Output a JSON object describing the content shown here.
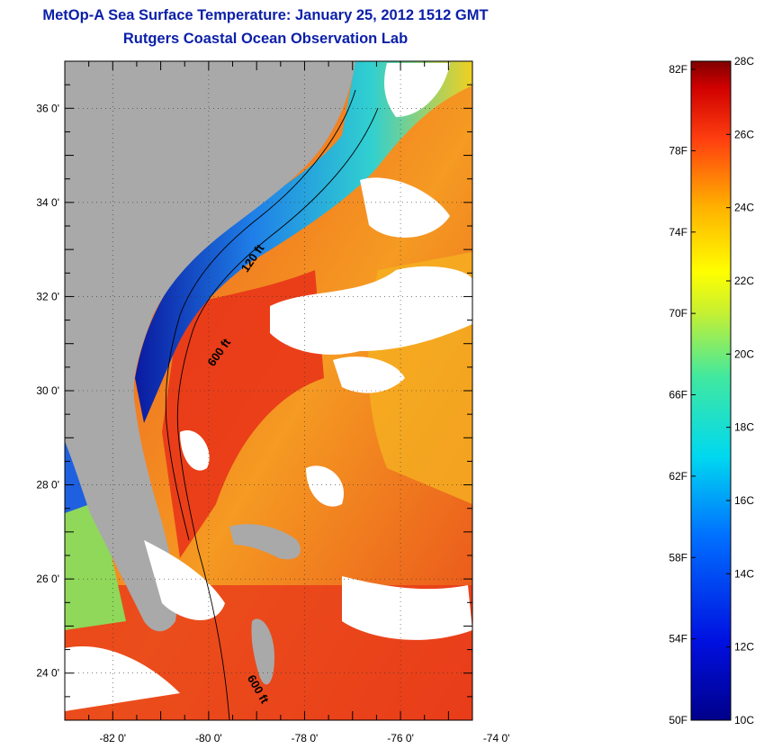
{
  "title_line1": "MetOp-A Sea Surface Temperature:  January 25, 2012 1512 GMT",
  "title_line2": "Rutgers Coastal Ocean Observation Lab",
  "lat_ticks": [
    {
      "label": "36 0'",
      "value": 36
    },
    {
      "label": "34 0'",
      "value": 34
    },
    {
      "label": "32 0'",
      "value": 32
    },
    {
      "label": "30 0'",
      "value": 30
    },
    {
      "label": "28 0'",
      "value": 28
    },
    {
      "label": "26 0'",
      "value": 26
    },
    {
      "label": "24 0'",
      "value": 24
    }
  ],
  "lon_ticks": [
    {
      "label": "-82 0'",
      "value": -82
    },
    {
      "label": "-80 0'",
      "value": -80
    },
    {
      "label": "-78 0'",
      "value": -78
    },
    {
      "label": "-76 0'",
      "value": -76
    },
    {
      "label": "-74 0'",
      "value": -74
    }
  ],
  "map_extent": {
    "lon_min": -83,
    "lon_max": -74.5,
    "lat_min": 23,
    "lat_max": 37
  },
  "contour_labels": [
    {
      "text": "120 ft",
      "lon": -79.2,
      "lat": 32.5
    },
    {
      "text": "600 ft",
      "lon": -79.9,
      "lat": 30.5
    },
    {
      "text": "600 ft",
      "lon": -79.2,
      "lat": 23.9
    }
  ],
  "colorbar": {
    "fahrenheit": [
      "82F",
      "78F",
      "74F",
      "70F",
      "66F",
      "62F",
      "58F",
      "54F",
      "50F"
    ],
    "celsius": [
      "28C",
      "26C",
      "24C",
      "22C",
      "20C",
      "18C",
      "16C",
      "14C",
      "12C",
      "10C"
    ],
    "min_c": 10,
    "max_c": 28
  },
  "colors": {
    "title": "#0b1fa8",
    "land": "#a9a9a9",
    "cloud": "#ffffff",
    "warm": "#e8301a",
    "cold": "#0a1a9a"
  }
}
